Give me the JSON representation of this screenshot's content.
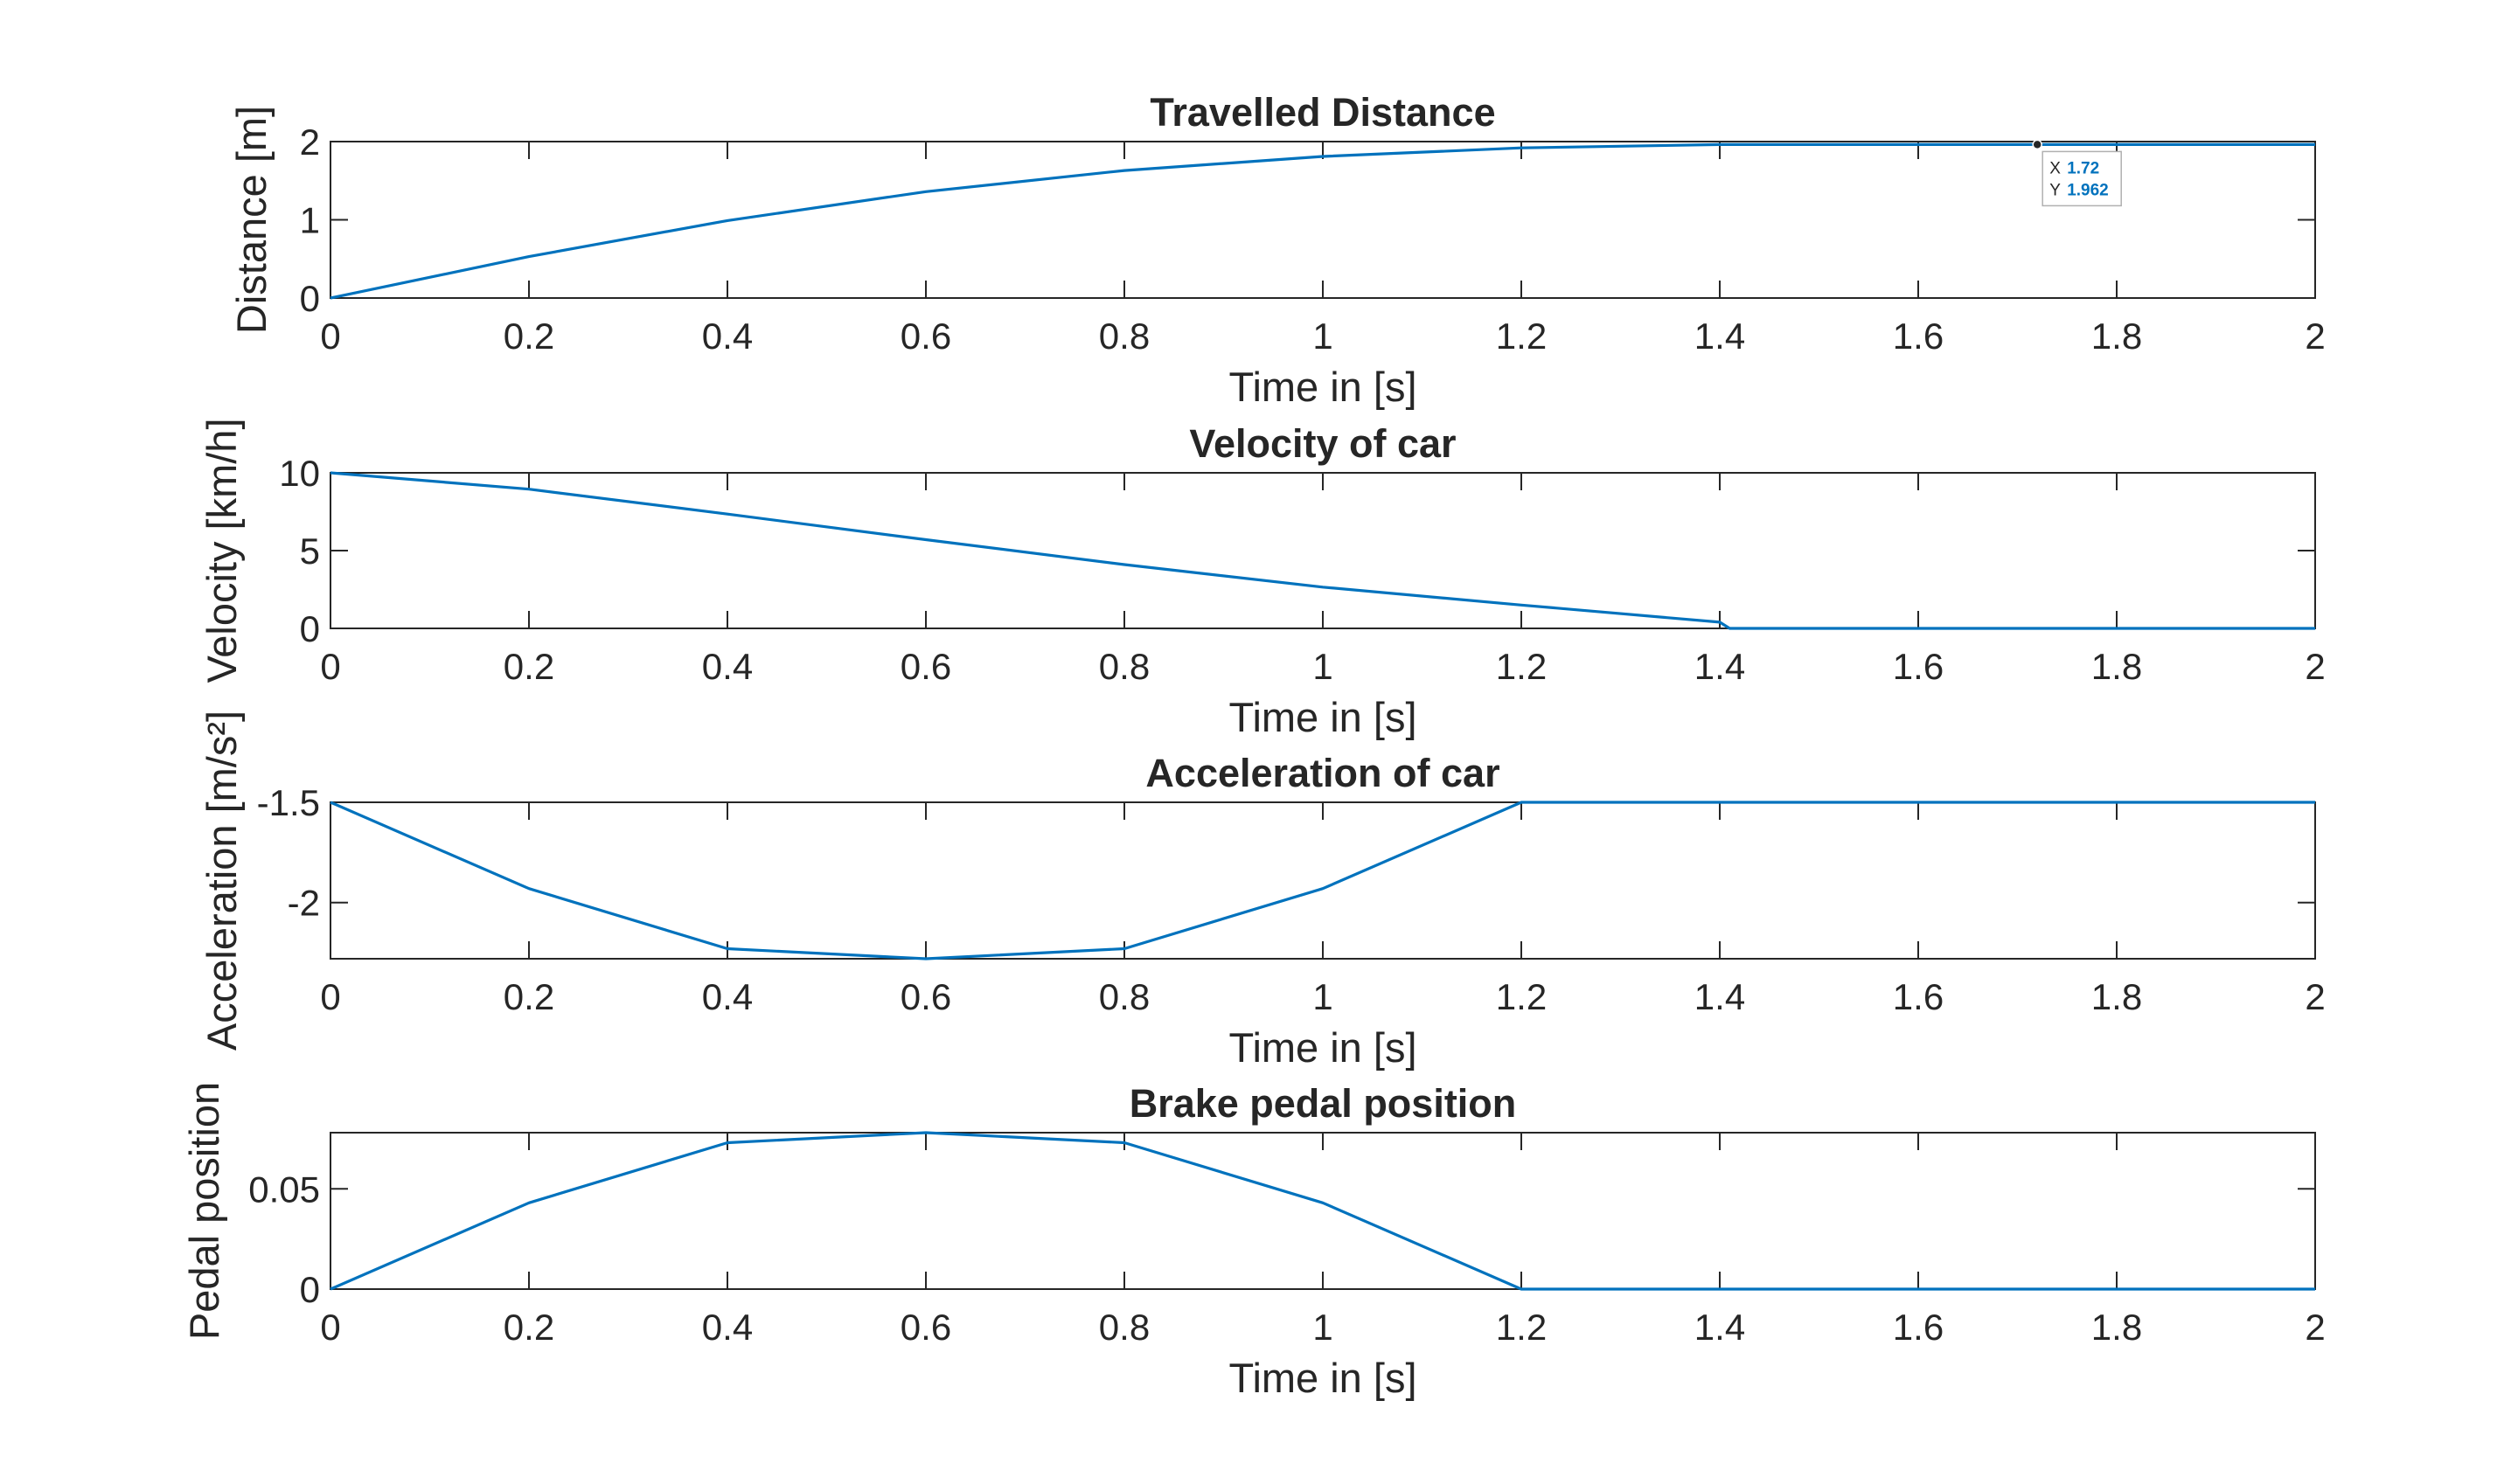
{
  "colors": {
    "series": "#0072BD",
    "datatip_value": "#0072BD",
    "axes": "#262626"
  },
  "chart_data": [
    {
      "type": "line",
      "title": "Travelled Distance",
      "xlabel": "Time in [s]",
      "ylabel": "Distance [m]",
      "xlim": [
        0,
        2
      ],
      "ylim": [
        0,
        2
      ],
      "xticks": [
        "0",
        "0.2",
        "0.4",
        "0.6",
        "0.8",
        "1",
        "1.2",
        "1.4",
        "1.6",
        "1.8",
        "2"
      ],
      "yticks": [
        "0",
        "1",
        "2"
      ],
      "grid": false,
      "x": [
        0,
        0.2,
        0.4,
        0.6,
        0.8,
        1.0,
        1.2,
        1.4,
        1.6,
        1.8,
        2.0
      ],
      "y": [
        0,
        0.53,
        0.99,
        1.36,
        1.63,
        1.81,
        1.92,
        1.962,
        1.962,
        1.962,
        1.962
      ],
      "datatip": {
        "x": 1.72,
        "y": 1.962,
        "x_label": "X",
        "y_label": "Y",
        "x_text": "1.72",
        "y_text": "1.962"
      }
    },
    {
      "type": "line",
      "title": "Velocity of car",
      "xlabel": "Time in [s]",
      "ylabel": "Velocity [km/h]",
      "xlim": [
        0,
        2
      ],
      "ylim": [
        0,
        10
      ],
      "xticks": [
        "0",
        "0.2",
        "0.4",
        "0.6",
        "0.8",
        "1",
        "1.2",
        "1.4",
        "1.6",
        "1.8",
        "2"
      ],
      "yticks": [
        "0",
        "5",
        "10"
      ],
      "grid": false,
      "x": [
        0,
        0.2,
        0.4,
        0.6,
        0.8,
        1.0,
        1.2,
        1.4,
        1.41,
        1.6,
        1.8,
        2.0
      ],
      "y": [
        10,
        8.95,
        7.35,
        5.7,
        4.1,
        2.65,
        1.5,
        0.4,
        0,
        0,
        0,
        0
      ]
    },
    {
      "type": "line",
      "title": "Acceleration of car",
      "xlabel": "Time in [s]",
      "ylabel": "Acceleration [m/s²]",
      "xlim": [
        0,
        2
      ],
      "ylim": [
        -2.28,
        -1.5
      ],
      "xticks": [
        "0",
        "0.2",
        "0.4",
        "0.6",
        "0.8",
        "1",
        "1.2",
        "1.4",
        "1.6",
        "1.8",
        "2"
      ],
      "yticks": [
        "-2",
        "-1.5"
      ],
      "grid": false,
      "x": [
        0,
        0.2,
        0.4,
        0.6,
        0.8,
        1.0,
        1.2,
        1.4,
        1.6,
        1.8,
        2.0
      ],
      "y": [
        -1.5,
        -1.93,
        -2.23,
        -2.28,
        -2.23,
        -1.93,
        -1.5,
        -1.5,
        -1.5,
        -1.5,
        -1.5
      ]
    },
    {
      "type": "line",
      "title": "Brake pedal position",
      "xlabel": "Time in [s]",
      "ylabel": "Pedal position",
      "xlim": [
        0,
        2
      ],
      "ylim": [
        0,
        0.078
      ],
      "xticks": [
        "0",
        "0.2",
        "0.4",
        "0.6",
        "0.8",
        "1",
        "1.2",
        "1.4",
        "1.6",
        "1.8",
        "2"
      ],
      "yticks": [
        "0",
        "0.05"
      ],
      "grid": false,
      "x": [
        0,
        0.2,
        0.4,
        0.6,
        0.8,
        1.0,
        1.2,
        1.4,
        1.6,
        1.8,
        2.0
      ],
      "y": [
        0,
        0.043,
        0.073,
        0.078,
        0.073,
        0.043,
        0,
        0,
        0,
        0,
        0
      ]
    }
  ]
}
